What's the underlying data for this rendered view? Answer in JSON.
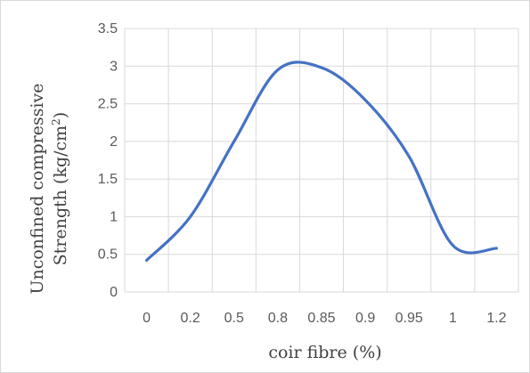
{
  "chart_data": {
    "type": "line",
    "categories": [
      "0",
      "0.2",
      "0.5",
      "0.8",
      "0.85",
      "0.9",
      "0.95",
      "1",
      "1.2"
    ],
    "series": [
      {
        "values": [
          0.42,
          1.0,
          2.0,
          2.95,
          2.98,
          2.55,
          1.8,
          0.62,
          0.58
        ]
      }
    ],
    "xlabel": "coir fibre (%)",
    "ylabel_line1": "Unconfined compressive",
    "ylabel_line2": "Strength (kg/cm",
    "ylabel_sup": "2",
    "ylabel_end": ")",
    "yticks": [
      "0",
      "0.5",
      "1",
      "1.5",
      "2",
      "2.5",
      "3",
      "3.5"
    ],
    "ylim": [
      0,
      3.5
    ],
    "grid": true,
    "line_color": "#4472c4",
    "grid_color": "#d9d9d9"
  }
}
